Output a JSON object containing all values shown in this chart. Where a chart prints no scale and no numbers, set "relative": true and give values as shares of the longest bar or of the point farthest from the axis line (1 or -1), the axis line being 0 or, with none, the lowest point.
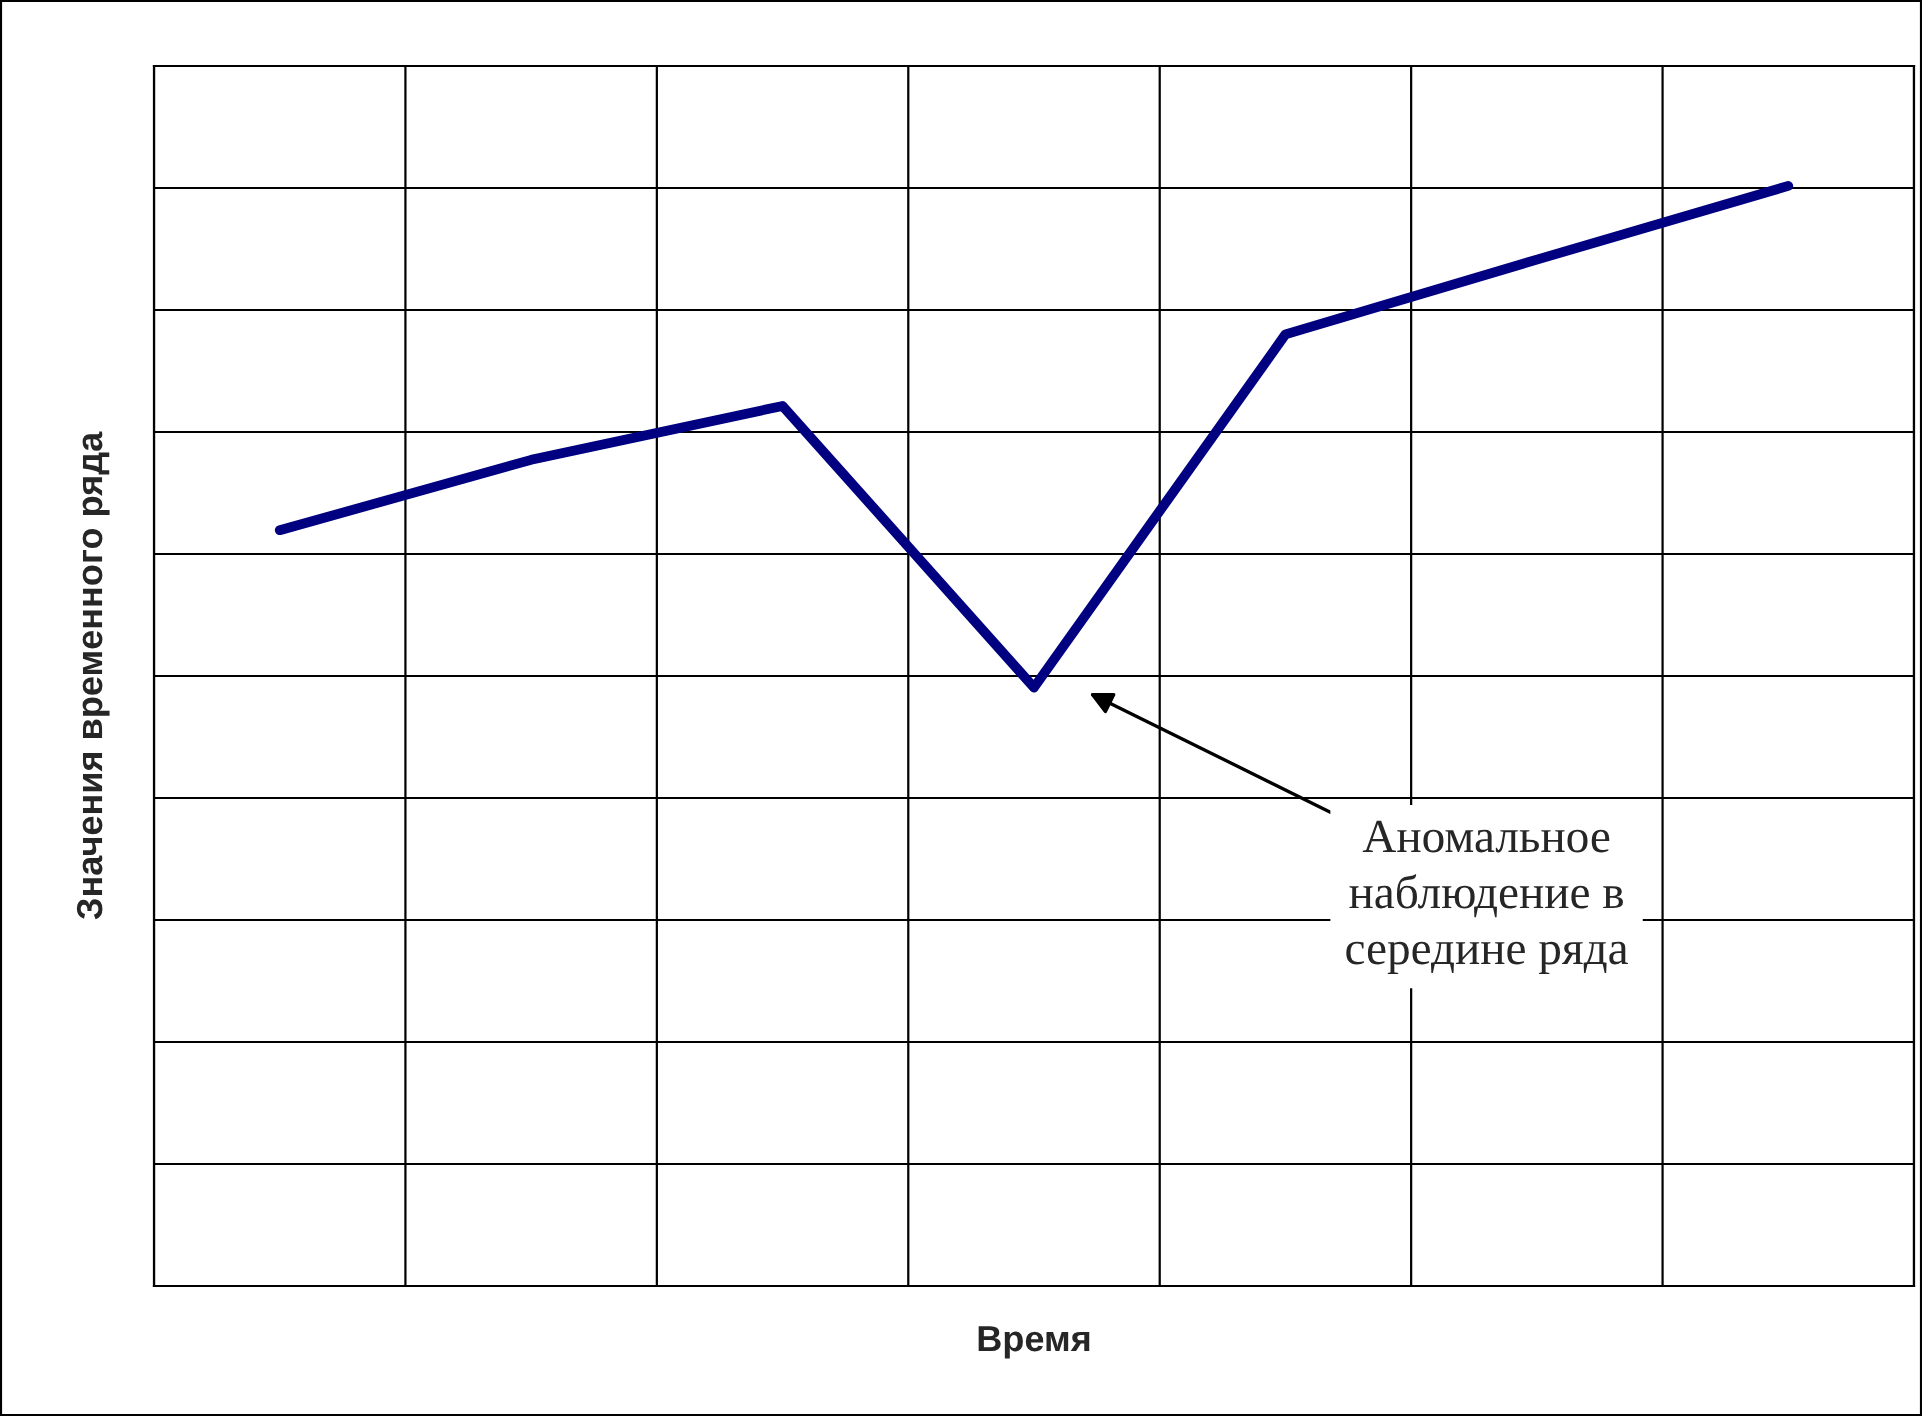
{
  "chart_data": {
    "type": "line",
    "relative": true,
    "xlabel": "Время",
    "ylabel": "Значения временного ряда",
    "categories": [
      null,
      null,
      null,
      null,
      null,
      null,
      null
    ],
    "series": [
      {
        "color": "#000080",
        "values": [
          0.687,
          0.751,
          0.8,
          0.544,
          0.865,
          0.933,
          1.0
        ]
      }
    ],
    "annotations": [
      "Аномальное\nнаблюдение в\nсередине ряда"
    ],
    "grid": true,
    "tick_labels": false,
    "marker": "none",
    "line_style": "solid",
    "legend": false
  }
}
